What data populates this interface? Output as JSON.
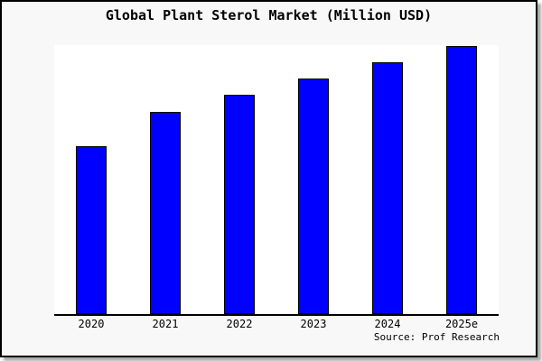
{
  "window": {
    "background_color": "#f8f8f8",
    "plot_background_color": "#ffffff",
    "frame_border_color": "#000000"
  },
  "chart_data": {
    "type": "bar",
    "title": "Global Plant Sterol Market (Million USD)",
    "categories": [
      "2020",
      "2021",
      "2022",
      "2023",
      "2024",
      "2025e"
    ],
    "values": [
      62.6,
      75.3,
      81.6,
      87.7,
      93.8,
      100
    ],
    "values_note": "y-axis has no ticks or labels; values are bar heights normalized to 2025e = 100",
    "ylim": [
      0,
      100.25
    ],
    "xlabel": "",
    "ylabel": "",
    "grid": false,
    "legend": "none",
    "bar_color": "#0000ff",
    "bar_edge_color": "#000000",
    "source": "Source: Prof Research"
  }
}
